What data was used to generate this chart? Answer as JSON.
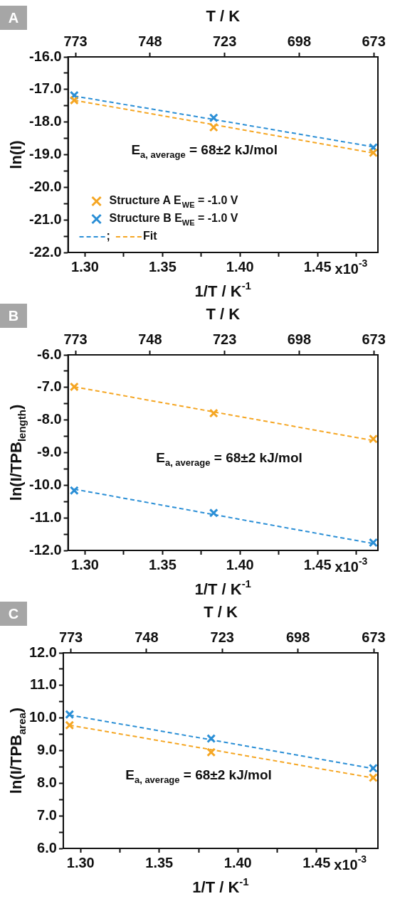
{
  "chart_data": [
    {
      "type": "scatter",
      "title": "A",
      "xlabel": "1/T / K$^{-1}$",
      "ylabel": "ln(I)",
      "x2label": "T / K",
      "marker": "cross",
      "grid": false,
      "legend": "bottom left",
      "x": [
        1.293,
        1.383,
        1.486
      ],
      "series": [
        {
          "name": "Structure A E$_{WE}$ = -1.0 V",
          "color": "#f5a623",
          "values": [
            -17.33,
            -18.16,
            -18.94
          ]
        },
        {
          "name": "Structure B E$_{WE}$ = -1.0 V",
          "color": "#2b8fd6",
          "values": [
            -17.18,
            -17.87,
            -18.78
          ]
        },
        {
          "name": ";",
          "type": "line",
          "line_style": "dashed",
          "marker": "none",
          "color": "#2b8fd6",
          "values": [
            -17.2,
            -17.92,
            -18.76
          ]
        },
        {
          "name": "Fit",
          "type": "line",
          "line_style": "dashed",
          "marker": "none",
          "color": "#f5a623",
          "values": [
            -17.33,
            -18.08,
            -18.95
          ]
        }
      ],
      "xlim": [
        1.289,
        1.489
      ],
      "xticks": [
        {
          "value": 1.3,
          "label": "1.30"
        },
        {
          "value": 1.325,
          "label": null
        },
        {
          "value": 1.35,
          "label": "1.35"
        },
        {
          "value": 1.375,
          "label": null
        },
        {
          "value": 1.4,
          "label": "1.40"
        },
        {
          "value": 1.425,
          "label": null
        },
        {
          "value": 1.45,
          "label": "1.45"
        },
        {
          "value": 1.475,
          "label": null
        }
      ],
      "x2lim": [
        775.5,
        671.6
      ],
      "x2ticks": [
        773,
        748,
        723,
        698,
        673
      ],
      "ylim": [
        -22,
        -16
      ],
      "yticks": [
        {
          "value": -22,
          "label": "-22.0"
        },
        {
          "value": -21.5,
          "label": null
        },
        {
          "value": -21,
          "label": "-21.0"
        },
        {
          "value": -20.5,
          "label": null
        },
        {
          "value": -20,
          "label": "-20.0"
        },
        {
          "value": -19.5,
          "label": null
        },
        {
          "value": -19,
          "label": "-19.0"
        },
        {
          "value": -18.5,
          "label": null
        },
        {
          "value": -18,
          "label": "-18.0"
        },
        {
          "value": -17.5,
          "label": null
        },
        {
          "value": -17,
          "label": "-17.0"
        },
        {
          "value": -16.5,
          "label": null
        },
        {
          "value": -16,
          "label": "-16.0"
        }
      ],
      "annotations": [
        "E$_{a, average}$ = 68±2 kJ/mol",
        "x10$^{-3}$"
      ]
    },
    {
      "type": "scatter",
      "title": "B",
      "xlabel": "1/T / K$^{-1}$",
      "ylabel": "ln(I/TPB$_{length}$)",
      "x2label": "T / K",
      "marker": "cross",
      "grid": false,
      "x": [
        1.293,
        1.383,
        1.486
      ],
      "series": [
        {
          "color": "#f5a623",
          "values": [
            -6.98,
            -7.79,
            -8.58
          ]
        },
        {
          "color": "#2b8fd6",
          "values": [
            -10.16,
            -10.85,
            -11.76
          ]
        },
        {
          "type": "line",
          "line_style": "dashed",
          "marker": "none",
          "color": "#f5a623",
          "values": [
            -6.98,
            -7.75,
            -8.63
          ]
        },
        {
          "type": "line",
          "line_style": "dashed",
          "marker": "none",
          "color": "#2b8fd6",
          "values": [
            -10.12,
            -10.9,
            -11.79
          ]
        }
      ],
      "xlim": [
        1.289,
        1.489
      ],
      "xticks": [
        {
          "value": 1.3,
          "label": "1.30"
        },
        {
          "value": 1.325,
          "label": null
        },
        {
          "value": 1.35,
          "label": "1.35"
        },
        {
          "value": 1.375,
          "label": null
        },
        {
          "value": 1.4,
          "label": "1.40"
        },
        {
          "value": 1.425,
          "label": null
        },
        {
          "value": 1.45,
          "label": "1.45"
        },
        {
          "value": 1.475,
          "label": null
        }
      ],
      "x2lim": [
        775.5,
        671.6
      ],
      "x2ticks": [
        773,
        748,
        723,
        698,
        673
      ],
      "ylim": [
        -12,
        -6
      ],
      "yticks": [
        {
          "value": -12,
          "label": "-12.0"
        },
        {
          "value": -11.5,
          "label": null
        },
        {
          "value": -11,
          "label": "-11.0"
        },
        {
          "value": -10.5,
          "label": null
        },
        {
          "value": -10,
          "label": "-10.0"
        },
        {
          "value": -9.5,
          "label": null
        },
        {
          "value": -9,
          "label": "-9.0"
        },
        {
          "value": -8.5,
          "label": null
        },
        {
          "value": -8,
          "label": "-8.0"
        },
        {
          "value": -7.5,
          "label": null
        },
        {
          "value": -7,
          "label": "-7.0"
        },
        {
          "value": -6.5,
          "label": null
        },
        {
          "value": -6,
          "label": "-6.0"
        }
      ],
      "annotations": [
        "E$_{a, average}$ = 68±2 kJ/mol",
        "x10$^{-3}$"
      ]
    },
    {
      "type": "scatter",
      "title": "C",
      "xlabel": "1/T / K$^{-1}$",
      "ylabel": "ln(I/TPB$_{area}$)",
      "x2label": "T / K",
      "marker": "cross",
      "grid": false,
      "x": [
        1.293,
        1.383,
        1.486
      ],
      "series": [
        {
          "color": "#f5a623",
          "values": [
            9.78,
            8.95,
            8.17
          ]
        },
        {
          "color": "#2b8fd6",
          "values": [
            10.11,
            9.37,
            8.46
          ]
        },
        {
          "type": "line",
          "line_style": "dashed",
          "marker": "none",
          "color": "#f5a623",
          "values": [
            9.78,
            9.03,
            8.16
          ]
        },
        {
          "type": "line",
          "line_style": "dashed",
          "marker": "none",
          "color": "#2b8fd6",
          "values": [
            10.09,
            9.33,
            8.45
          ]
        }
      ],
      "xlim": [
        1.289,
        1.489
      ],
      "xticks": [
        {
          "value": 1.3,
          "label": "1.30"
        },
        {
          "value": 1.325,
          "label": null
        },
        {
          "value": 1.35,
          "label": "1.35"
        },
        {
          "value": 1.375,
          "label": null
        },
        {
          "value": 1.4,
          "label": "1.40"
        },
        {
          "value": 1.425,
          "label": null
        },
        {
          "value": 1.45,
          "label": "1.45"
        },
        {
          "value": 1.475,
          "label": null
        }
      ],
      "x2lim": [
        775.5,
        671.6
      ],
      "x2ticks": [
        773,
        748,
        723,
        698,
        673
      ],
      "ylim": [
        6,
        12
      ],
      "yticks": [
        {
          "value": 6,
          "label": "6.0"
        },
        {
          "value": 6.5,
          "label": null
        },
        {
          "value": 7,
          "label": "7.0"
        },
        {
          "value": 7.5,
          "label": null
        },
        {
          "value": 8,
          "label": "8.0"
        },
        {
          "value": 8.5,
          "label": null
        },
        {
          "value": 9,
          "label": "9.0"
        },
        {
          "value": 9.5,
          "label": null
        },
        {
          "value": 10,
          "label": "10.0"
        },
        {
          "value": 10.5,
          "label": null
        },
        {
          "value": 11,
          "label": "11.0"
        },
        {
          "value": 11.5,
          "label": null
        },
        {
          "value": 12,
          "label": "12.0"
        }
      ],
      "annotations": [
        "E$_{a, average}$ = 68±2 kJ/mol",
        "x10$^{-3}$"
      ]
    }
  ]
}
